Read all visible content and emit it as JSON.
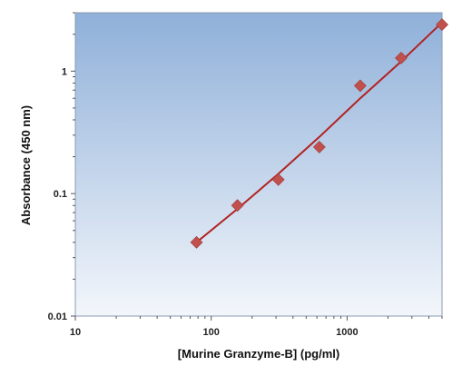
{
  "chart_data": {
    "type": "scatter",
    "title": "",
    "xlabel": "[Murine Granzyme-B] (pg/ml)",
    "ylabel": "Absorbance (450 nm)",
    "x_scale": "log",
    "y_scale": "log",
    "xlim": [
      10,
      5000
    ],
    "ylim": [
      0.01,
      3
    ],
    "x_ticks": [
      10,
      100,
      1000
    ],
    "x_tick_labels": [
      "10",
      "100",
      "1000"
    ],
    "y_ticks": [
      0.01,
      0.1,
      1
    ],
    "y_tick_labels": [
      "0.01",
      "0.1",
      "1"
    ],
    "grid": false,
    "background": "blue gradient",
    "series": [
      {
        "marker": "diamond",
        "color": "#c0504d",
        "points": [
          {
            "x": 78,
            "y": 0.04
          },
          {
            "x": 156,
            "y": 0.08
          },
          {
            "x": 312,
            "y": 0.13
          },
          {
            "x": 625,
            "y": 0.24
          },
          {
            "x": 1250,
            "y": 0.76
          },
          {
            "x": 2500,
            "y": 1.28
          },
          {
            "x": 5000,
            "y": 2.4
          }
        ]
      }
    ],
    "fit_line": {
      "color": "#b22222",
      "points": [
        {
          "x": 78,
          "y": 0.04
        },
        {
          "x": 156,
          "y": 0.075
        },
        {
          "x": 312,
          "y": 0.145
        },
        {
          "x": 625,
          "y": 0.29
        },
        {
          "x": 1250,
          "y": 0.6
        },
        {
          "x": 2500,
          "y": 1.2
        },
        {
          "x": 5000,
          "y": 2.5
        }
      ]
    }
  },
  "colors": {
    "plot_top": "#8fb0d9",
    "plot_bottom": "#f3f6fb",
    "marker": "#c0504d",
    "fit_line": "#b22222"
  }
}
